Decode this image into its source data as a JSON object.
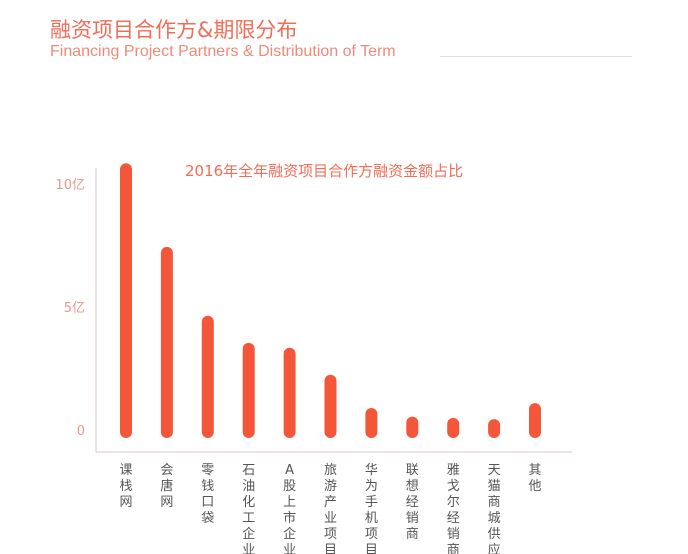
{
  "header": {
    "title": "融资项目合作方&期限分布",
    "subtitle": "Financing Project Partners & Distribution of Term"
  },
  "chart_data": {
    "type": "bar",
    "title": "2016年全年融资项目合作方融资金额占比",
    "categories": [
      "课栈网",
      "会唐网",
      "零钱口袋",
      "石油化工企业",
      "A股上市企业",
      "旅游产业项目",
      "华为手机项目",
      "联想经销商",
      "雅戈尔经销商",
      "天猫商城供应商",
      "其他"
    ],
    "values": [
      10.6,
      7.2,
      4.4,
      3.3,
      3.1,
      2.0,
      0.65,
      0.3,
      0.25,
      0.2,
      0.85
    ],
    "unit": "亿",
    "yticks": [
      {
        "value": 0,
        "label": "0"
      },
      {
        "value": 5,
        "label": "5亿"
      },
      {
        "value": 10,
        "label": "10亿"
      }
    ],
    "ylim": [
      0,
      10
    ],
    "grid": false,
    "colors": {
      "bar": "#f4563a",
      "text": "#f26d57",
      "axis": "#c8b0b0"
    }
  }
}
